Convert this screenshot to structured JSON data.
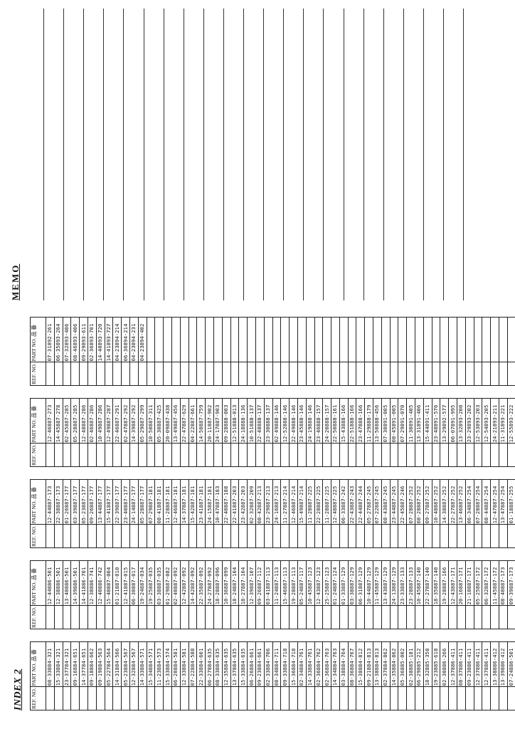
{
  "index_title": "INDEX 2",
  "memo_title": "MEMO",
  "header": {
    "ref": "REF. NO.",
    "part": "PART NO. 品 番"
  },
  "tables": [
    {
      "rows": [
        "08-33884-321",
        "15-33884-321",
        "23-37784-321",
        "09-16884-651",
        "14-37784-651",
        "09-18884-662",
        "09-19884-563",
        "05-22784-564",
        "14-31884-566",
        "05-23884-567",
        "12-32884-567",
        "14-33884-571",
        "15-34884-571",
        "11-23884-573",
        "15-33884-574",
        "06-20884-581",
        "12-33884-581",
        "07-22884-588",
        "22-33884-601",
        "06-27884-635",
        "08-33884-635",
        "12-35884-635",
        "13-37884-635",
        "15-33884-635",
        "06-26884-661",
        "09-23884-661",
        "02-33884-706",
        "08-34884-711",
        "09-33884-718",
        "15-36884-718",
        "02-34884-761",
        "14-33884-761",
        "02-36884-762",
        "02-36884-763",
        "14-34884-763",
        "03-38884-764",
        "08-36884-767",
        "15-38884-812",
        "09-21884-813",
        "13-38884-813",
        "02-37884-862",
        "14-35884-862",
        "05-36885-002",
        "02-38885-181",
        "06-29885-212",
        "18-32885-358",
        "19-23885-618",
        "02-30886-266",
        "12-37886-411",
        "08-37886-411",
        "09-23886-411",
        "12-37886-411",
        "12-37886-411",
        "13-38886-412",
        "13-39886-412",
        "07-24886-501"
      ]
    },
    {
      "rows": [
        "12-44886-501",
        "12-38886-501",
        "13-40886-501",
        "14-39886-501",
        "14-41886-701",
        "12-38886-741",
        "12-40886-742",
        "15-40887-004",
        "01-21887-010",
        "12-41887-015",
        "06-30887-017",
        "19-24887-034",
        "19-25887-035",
        "03-38887-035",
        "01-29887-082",
        "02-40887-092",
        "12-42887-092",
        "14-42887-092",
        "22-35887-092",
        "24-27887-092",
        "18-28887-096",
        "10-36887-099",
        "18-24887-104",
        "18-27887-104",
        "12-39887-107",
        "09-26887-112",
        "03-41887-113",
        "11-24887-113",
        "15-46887-113",
        "19-28887-113",
        "05-24887-117",
        "10-45887-123",
        "12-43887-123",
        "25-25887-123",
        "01-24887-124",
        "01-33887-129",
        "03-38887-129",
        "06-31887-129",
        "10-44887-129",
        "11-45887-129",
        "13-43887-129",
        "24-13887-129",
        "23-33887-133",
        "23-28887-133",
        "10-45887-140",
        "22-27887-140",
        "18-35887-140",
        "19-28887-166",
        "12-43887-171",
        "20-16887-171",
        "21-10887-171",
        "05-25887-172",
        "06-32887-172",
        "11-45887-172",
        "08-40887-173",
        "09-39887-173",
        "10-46887-173"
      ]
    },
    {
      "rows": [
        "12-44887-173",
        "22-38887-173",
        "01-26887-177",
        "03-39887-177",
        "05-23887-177",
        "09-26887-177",
        "13-44887-177",
        "15-41887-177",
        "22-39887-177",
        "23-40887-177",
        "24-14887-177",
        "05-28887-177",
        "07-29887-181",
        "08-41887-181",
        "11-28887-181",
        "12-46887-181",
        "14-37887-181",
        "15-42887-181",
        "23-41887-181",
        "24-15887-181",
        "10-47887-183",
        "22-40887-188",
        "22-41887-203",
        "23-42887-203",
        "02-32887-209",
        "08-42887-213",
        "23-29887-213",
        "24-16887-213",
        "11-27887-214",
        "12-46887-214",
        "15-49887-214",
        "11-28887-225",
        "22-28887-225",
        "11-28887-225",
        "12-48887-225",
        "06-33887-242",
        "22-43887-243",
        "22-44887-244",
        "05-27887-245",
        "07-22887-245",
        "08-43887-245",
        "23-44887-245",
        "22-45887-246",
        "07-28887-252",
        "08-28887-252",
        "09-27887-252",
        "10-48887-252",
        "14-38887-252",
        "22-27887-252",
        "13-46887-252",
        "06-34887-254",
        "07-28887-254",
        "08-44887-254",
        "12-47887-254",
        "13-47887-254",
        "01-18887-255",
        "01-33887-264",
        "02-44887-266",
        "03-41887-272"
      ]
    },
    {
      "rows": [
        "12-46887-273",
        "14-45887-278",
        "02-45887-285",
        "05-28887-285",
        "12-48887-286",
        "02-46887-286",
        "10-49887-286",
        "12-49887-287",
        "22-46887-291",
        "02-47887-292",
        "14-39887-292",
        "05-29887-299",
        "10-50887-311",
        "05-30887-425",
        "20-09887-438",
        "13-49887-456",
        "22-47887-629",
        "04-22887-661",
        "14-50887-759",
        "20-11887-902",
        "24-17887-903",
        "09-28888-003",
        "12-51888-013",
        "24-18888-136",
        "10-51888-137",
        "22-48888-137",
        "23-30888-137",
        "02-49888-146",
        "12-52888-146",
        "22-49888-146",
        "23-45888-146",
        "24-19888-146",
        "23-46888-157",
        "24-20888-157",
        "22-50888-161",
        "15-43888-166",
        "22-51888-166",
        "23-47888-166",
        "11-29888-179",
        "13-50888-456",
        "07-30891-005",
        "08-45891-005",
        "07-29891-070",
        "11-30891-405",
        "13-31891-406",
        "15-44891-411",
        "23-48891-576",
        "13-29892-577",
        "06-07891-995",
        "13-32893-200",
        "23-29893-202",
        "12-53893-203",
        "12-54893-205",
        "24-21893-211",
        "11-31893-221",
        "12-55893-222",
        "23-31893-223",
        "12-56893-258"
      ]
    },
    {
      "rows": [
        "07-31892-261",
        "06-35893-264",
        "07-32893-406",
        "08-46893-406",
        "09-29893-611",
        "02-36893-701",
        "14-40893-720",
        "14-41893-727",
        "04-23894-214",
        "06-36894-214",
        "04-23894-231",
        "04-23894-402"
      ]
    }
  ]
}
